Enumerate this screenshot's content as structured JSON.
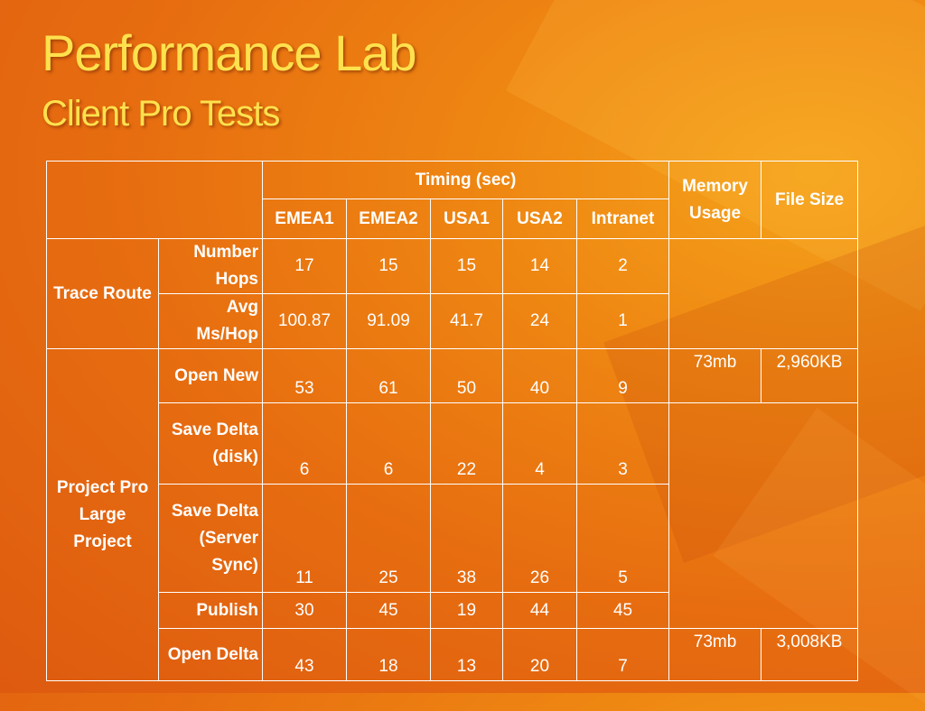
{
  "title": "Performance Lab",
  "subtitle": "Client Pro Tests",
  "table": {
    "timing_header": "Timing (sec)",
    "memory_header": "Memory Usage",
    "filesize_header": "File Size",
    "columns": [
      "EMEA1",
      "EMEA2",
      "USA1",
      "USA2",
      "Intranet"
    ],
    "group_trace": "Trace Route",
    "group_project": "Project Pro Large Project",
    "rows": [
      {
        "label": "Number Hops",
        "values": [
          "17",
          "15",
          "15",
          "14",
          "2"
        ]
      },
      {
        "label": "Avg Ms/Hop",
        "values": [
          "100.87",
          "91.09",
          "41.7",
          "24",
          "1"
        ]
      },
      {
        "label": "Open New",
        "values": [
          "53",
          "61",
          "50",
          "40",
          "9"
        ],
        "memory": "73mb",
        "filesize": "2,960KB"
      },
      {
        "label": "Save Delta (disk)",
        "values": [
          "6",
          "6",
          "22",
          "4",
          "3"
        ]
      },
      {
        "label": "Save Delta (Server Sync)",
        "values": [
          "11",
          "25",
          "38",
          "26",
          "5"
        ]
      },
      {
        "label": "Publish",
        "values": [
          "30",
          "45",
          "19",
          "44",
          "45"
        ]
      },
      {
        "label": "Open Delta",
        "values": [
          "43",
          "18",
          "13",
          "20",
          "7"
        ],
        "memory": "73mb",
        "filesize": "3,008KB"
      }
    ]
  }
}
